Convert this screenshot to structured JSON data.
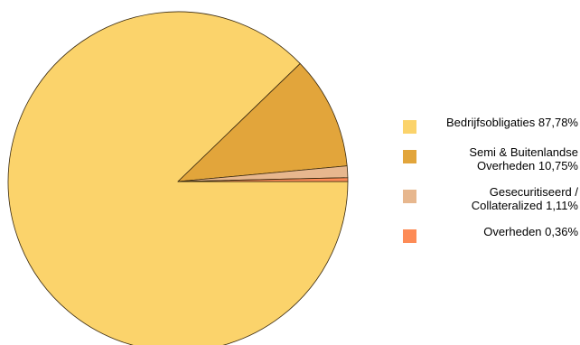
{
  "chart_data": {
    "type": "pie",
    "title": "",
    "slices": [
      {
        "label_line1": "Bedrijfsobligaties 87,78%",
        "label_line2": "",
        "value": 87.78,
        "color": "#fbd36b"
      },
      {
        "label_line1": "Semi & Buitenlandse",
        "label_line2": "Overheden 10,75%",
        "value": 10.75,
        "color": "#e2a53b"
      },
      {
        "label_line1": "Gesecuritiseerd /",
        "label_line2": "Collateralized 1,11%",
        "value": 1.11,
        "color": "#e7b78e"
      },
      {
        "label_line1": "Overheden 0,36%",
        "label_line2": "",
        "value": 0.36,
        "color": "#fd8b56"
      }
    ],
    "start_angle": "east",
    "direction": "clockwise",
    "legend_position": "right"
  }
}
